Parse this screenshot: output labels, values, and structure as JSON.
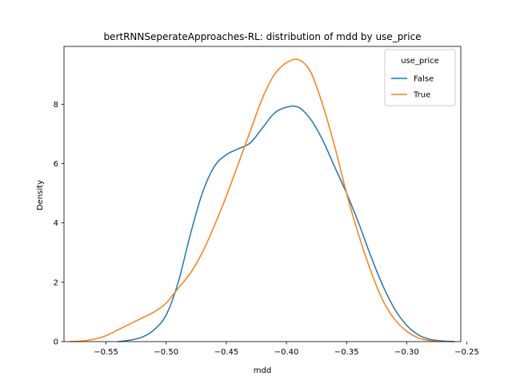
{
  "chart_data": {
    "type": "line",
    "title": "bertRNNSeperateApproaches-RL: distribution of mdd by use_price",
    "xlabel": "mdd",
    "ylabel": "Density",
    "xlim": [
      -0.585,
      -0.255
    ],
    "ylim": [
      0,
      9.95
    ],
    "x_ticks": [
      -0.55,
      -0.5,
      -0.45,
      -0.4,
      -0.35,
      -0.3,
      -0.25
    ],
    "x_tick_labels": [
      "−0.55",
      "−0.50",
      "−0.45",
      "−0.40",
      "−0.35",
      "−0.30",
      "−0.25"
    ],
    "y_ticks": [
      0,
      2,
      4,
      6,
      8
    ],
    "y_tick_labels": [
      "0",
      "2",
      "4",
      "6",
      "8"
    ],
    "grid": false,
    "legend": {
      "title": "use_price",
      "placement": "top-right"
    },
    "series": [
      {
        "name": "False",
        "color": "#1f77b4",
        "x": [
          -0.54,
          -0.53,
          -0.52,
          -0.51,
          -0.5,
          -0.49,
          -0.48,
          -0.47,
          -0.46,
          -0.45,
          -0.44,
          -0.43,
          -0.42,
          -0.41,
          -0.4,
          -0.39,
          -0.38,
          -0.37,
          -0.36,
          -0.35,
          -0.34,
          -0.33,
          -0.32,
          -0.31,
          -0.3,
          -0.29,
          -0.28,
          -0.27,
          -0.26
        ],
        "y": [
          0.0,
          0.05,
          0.15,
          0.4,
          0.9,
          2.0,
          3.6,
          5.0,
          5.9,
          6.3,
          6.5,
          6.7,
          7.2,
          7.7,
          7.9,
          7.9,
          7.5,
          6.8,
          5.9,
          5.0,
          4.0,
          2.9,
          1.9,
          1.1,
          0.55,
          0.22,
          0.07,
          0.02,
          0.0
        ]
      },
      {
        "name": "True",
        "color": "#ff7f0e",
        "x": [
          -0.58,
          -0.57,
          -0.56,
          -0.55,
          -0.54,
          -0.53,
          -0.52,
          -0.51,
          -0.5,
          -0.49,
          -0.48,
          -0.47,
          -0.46,
          -0.45,
          -0.44,
          -0.43,
          -0.42,
          -0.41,
          -0.4,
          -0.39,
          -0.38,
          -0.37,
          -0.36,
          -0.35,
          -0.34,
          -0.33,
          -0.32,
          -0.31,
          -0.3,
          -0.29,
          -0.28,
          -0.27
        ],
        "y": [
          0.0,
          0.02,
          0.08,
          0.2,
          0.4,
          0.6,
          0.8,
          1.0,
          1.3,
          1.8,
          2.3,
          3.0,
          3.9,
          4.9,
          6.0,
          7.1,
          8.2,
          9.0,
          9.4,
          9.5,
          9.1,
          8.0,
          6.6,
          5.0,
          3.6,
          2.4,
          1.4,
          0.75,
          0.35,
          0.12,
          0.03,
          0.0
        ]
      }
    ]
  }
}
